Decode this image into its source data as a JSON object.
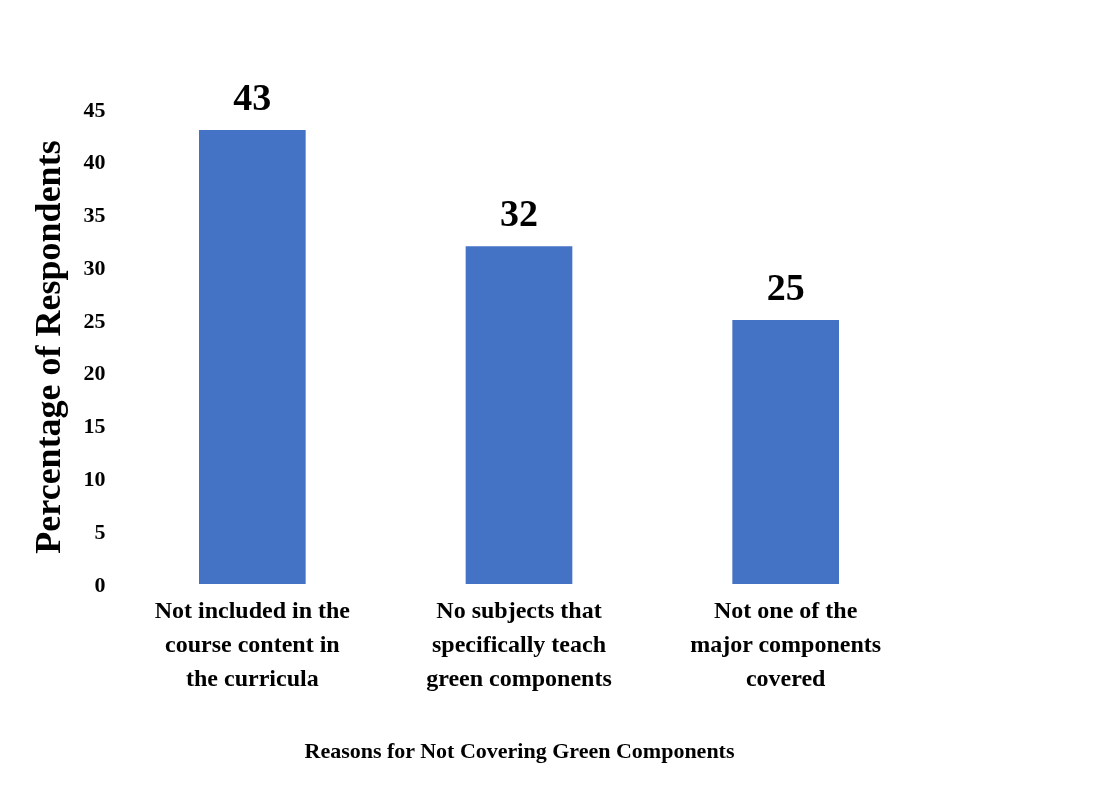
{
  "chart_data": {
    "type": "bar",
    "xlabel": "Reasons for Not Covering Green Components",
    "ylabel": "Percentage of Respondents",
    "categories": [
      "Not included in the course content in the curricula",
      "No subjects that specifically teach green components",
      "Not one of the major components covered"
    ],
    "values": [
      43,
      32,
      25
    ],
    "color": "#4472c4",
    "ylim": [
      0,
      45
    ],
    "yticks": [
      0,
      5,
      10,
      15,
      20,
      25,
      30,
      35,
      40,
      45
    ],
    "grid": false,
    "data_labels": true
  }
}
